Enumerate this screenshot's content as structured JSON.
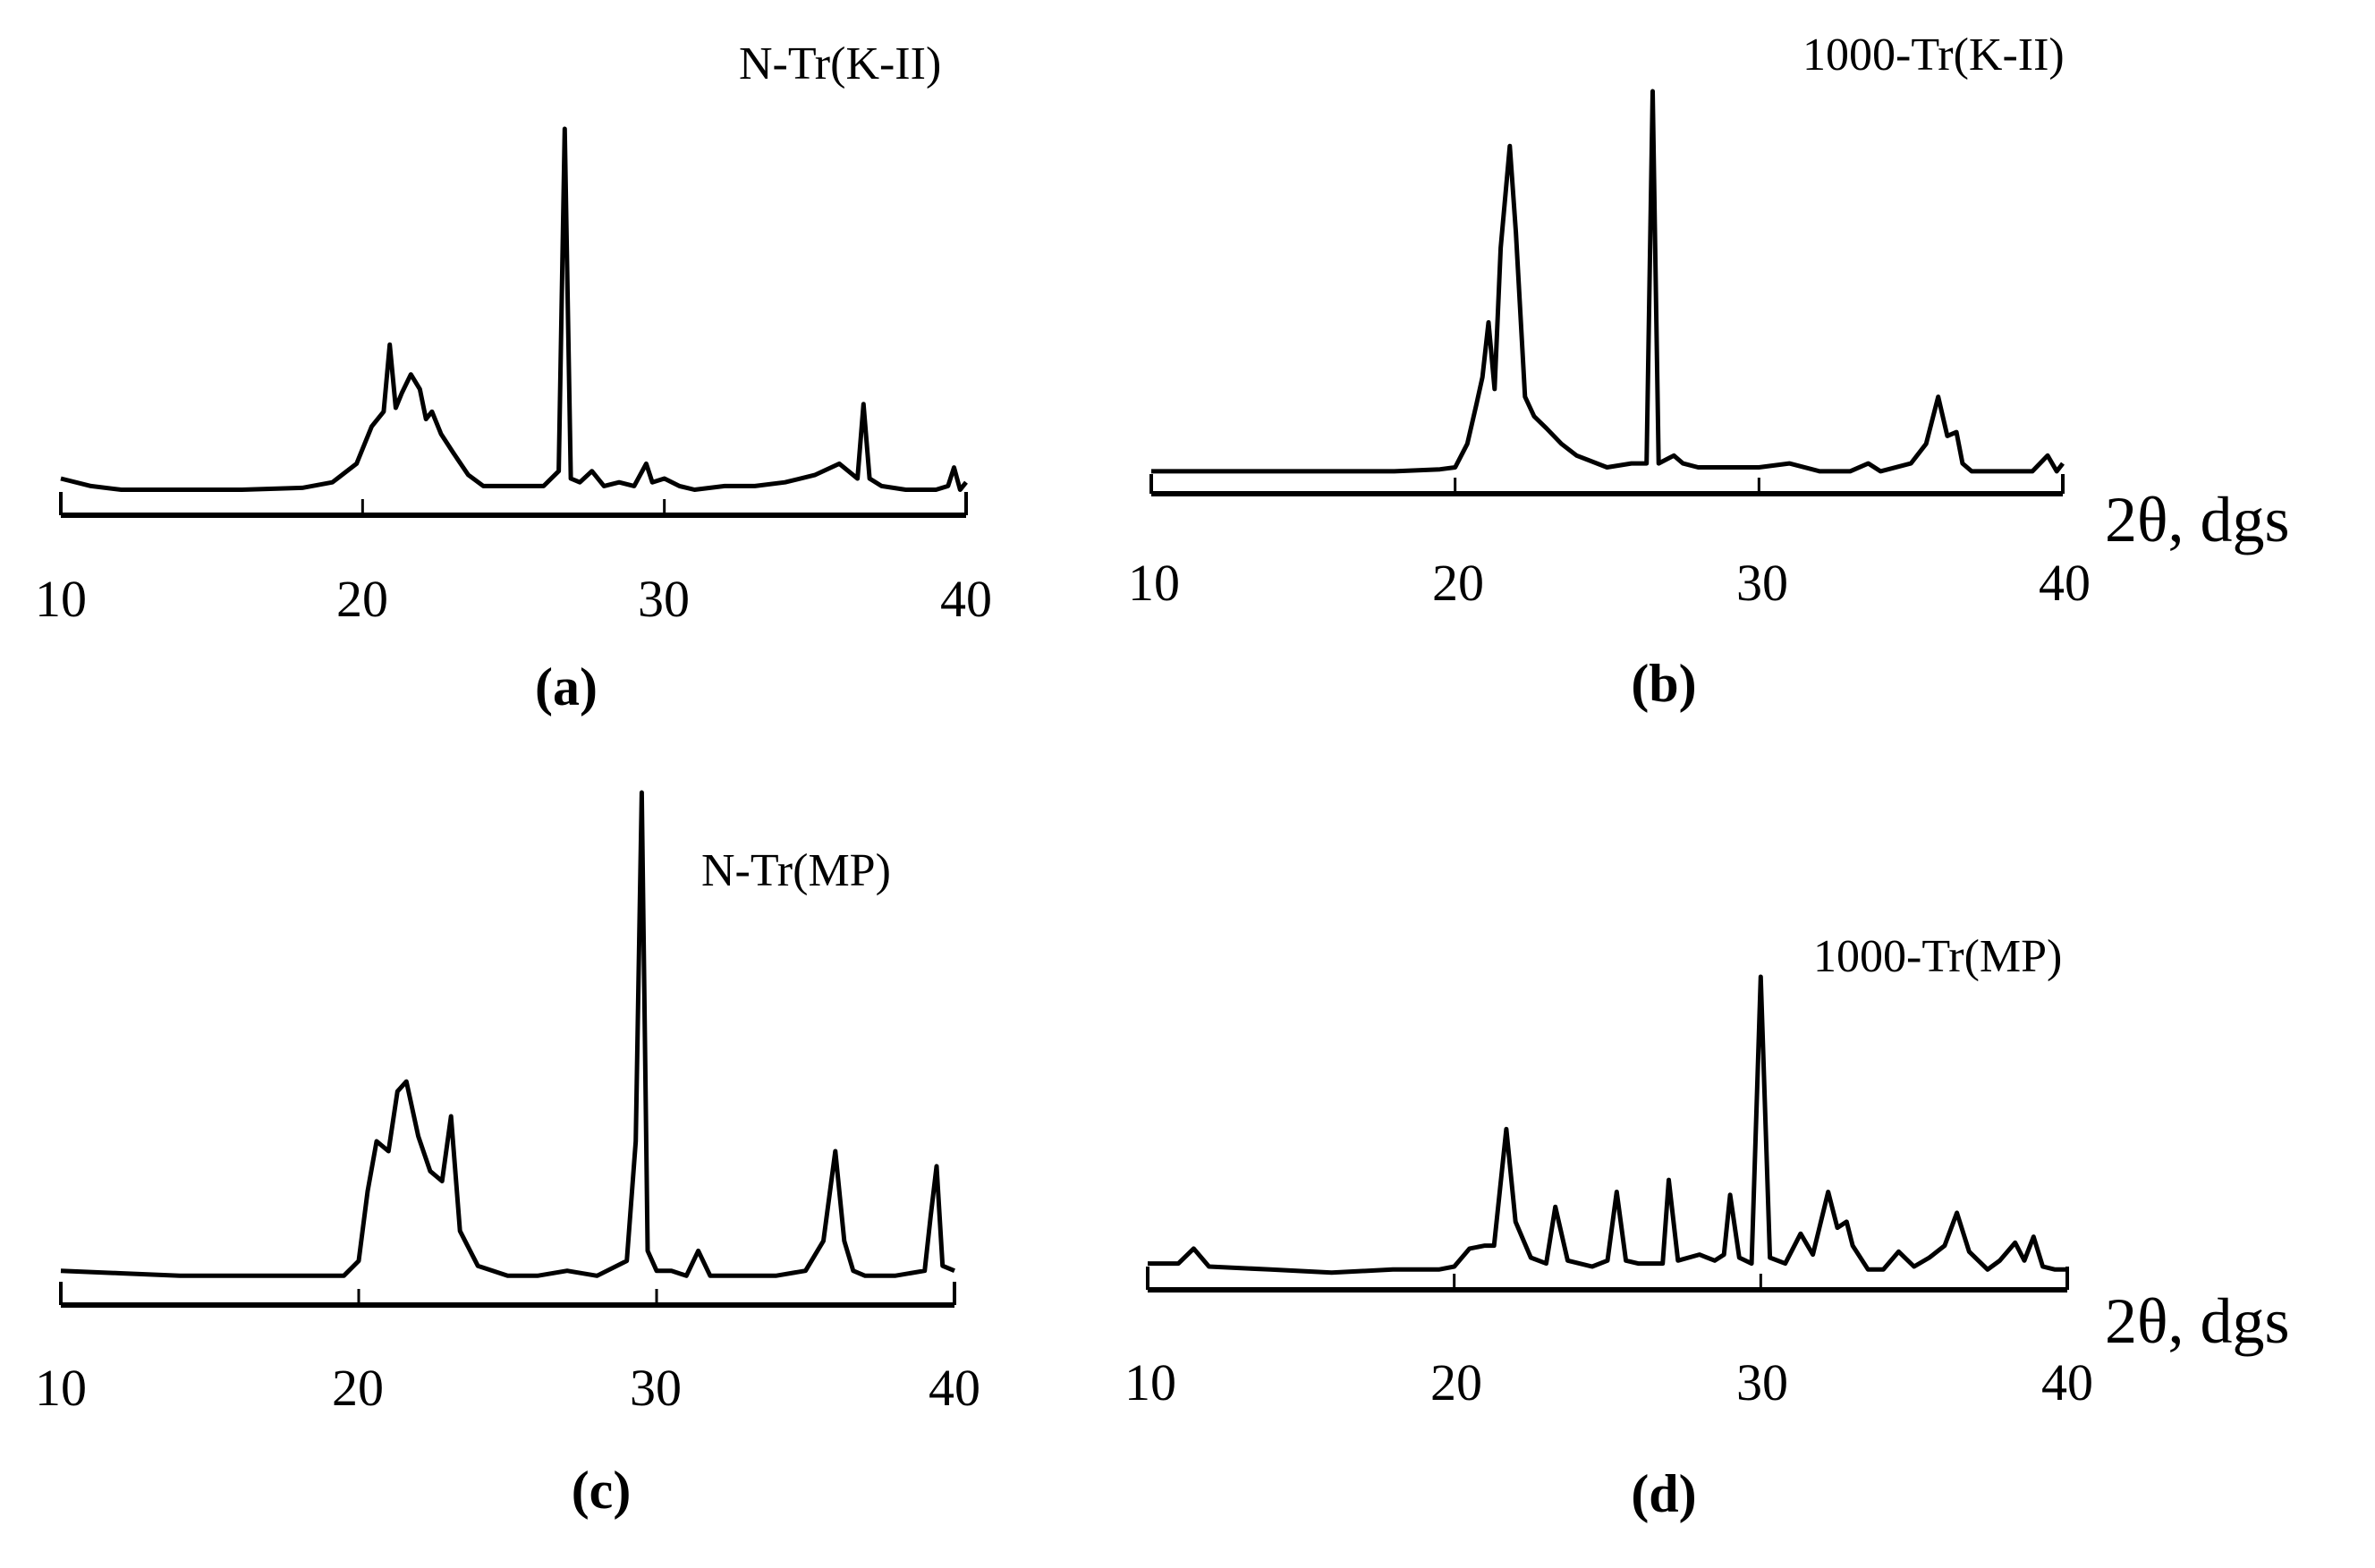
{
  "figure": {
    "panels": [
      {
        "id": "a",
        "caption": "(a)",
        "title": "N-Tr(K-II)",
        "xlabel": "",
        "ticks": [
          "10",
          "20",
          "30",
          "40"
        ]
      },
      {
        "id": "b",
        "caption": "(b)",
        "title": "1000-Tr(K-II)",
        "xlabel": "2θ, dgs",
        "ticks": [
          "10",
          "20",
          "30",
          "40"
        ]
      },
      {
        "id": "c",
        "caption": "(c)",
        "title": "N-Tr(MP)",
        "xlabel": "",
        "ticks": [
          "10",
          "20",
          "30",
          "40"
        ]
      },
      {
        "id": "d",
        "caption": "(d)",
        "title": "1000-Tr(MP)",
        "xlabel": "2θ, dgs",
        "ticks": [
          "10",
          "20",
          "30",
          "40"
        ]
      }
    ],
    "line_color": "#000000",
    "background": "#ffffff"
  },
  "chart_data": [
    {
      "type": "line",
      "panel": "a",
      "title": "N-Tr(K-II)",
      "xlabel": "2θ, dgs",
      "ylabel": "",
      "xlim": [
        10,
        40
      ],
      "xticks": [
        10,
        20,
        30,
        40
      ],
      "grid": false,
      "series": [
        {
          "name": "N-Tr(K-II)",
          "x": [
            10,
            11,
            12,
            14,
            16,
            18,
            19,
            19.8,
            20.3,
            20.7,
            20.9,
            21.1,
            21.3,
            21.6,
            21.9,
            22.1,
            22.3,
            22.6,
            23,
            23.5,
            24,
            25,
            26,
            26.5,
            26.7,
            26.9,
            27.2,
            27.6,
            28,
            28.5,
            29,
            29.4,
            29.6,
            30,
            30.5,
            31,
            32,
            33,
            34,
            35,
            35.8,
            36.1,
            36.4,
            36.6,
            36.8,
            37.2,
            38,
            39,
            39.4,
            39.6,
            39.8,
            40
          ],
          "y": [
            6,
            4,
            3,
            3,
            3,
            3.5,
            5,
            10,
            20,
            24,
            42,
            25,
            29,
            34,
            30,
            22,
            24,
            18,
            13,
            7,
            4,
            4,
            4,
            8,
            100,
            6,
            5,
            8,
            4,
            5,
            4,
            10,
            5,
            6,
            4,
            3,
            4,
            4,
            5,
            7,
            10,
            8,
            6,
            26,
            6,
            4,
            3,
            3,
            4,
            9,
            3,
            5
          ]
        }
      ]
    },
    {
      "type": "line",
      "panel": "b",
      "title": "1000-Tr(K-II)",
      "xlabel": "2θ, dgs",
      "ylabel": "",
      "xlim": [
        10,
        40
      ],
      "xticks": [
        10,
        20,
        30,
        40
      ],
      "grid": false,
      "series": [
        {
          "name": "1000-Tr(K-II)",
          "x": [
            10,
            12,
            14,
            16,
            18,
            19.5,
            20,
            20.4,
            20.7,
            20.9,
            21.1,
            21.3,
            21.5,
            21.8,
            22,
            22.3,
            22.6,
            23,
            23.5,
            24,
            25,
            25.8,
            26.3,
            26.5,
            26.7,
            27.2,
            27.5,
            28,
            29,
            30,
            31,
            32,
            33,
            33.6,
            34,
            35,
            35.5,
            35.9,
            36.2,
            36.5,
            36.7,
            37,
            38,
            39,
            39.5,
            39.8,
            40
          ],
          "y": [
            3,
            3,
            3,
            3,
            3,
            3.5,
            4,
            10,
            20,
            27,
            41,
            24,
            60,
            86,
            64,
            22,
            17,
            14,
            10,
            7,
            4,
            5,
            5,
            100,
            5,
            7,
            5,
            4,
            4,
            4,
            5,
            3,
            3,
            5,
            3,
            5,
            10,
            22,
            12,
            13,
            5,
            3,
            3,
            3,
            7,
            3,
            5
          ]
        }
      ]
    },
    {
      "type": "line",
      "panel": "c",
      "title": "N-Tr(MP)",
      "xlabel": "2θ, dgs",
      "ylabel": "",
      "xlim": [
        10,
        40
      ],
      "xticks": [
        10,
        20,
        30,
        40
      ],
      "grid": false,
      "series": [
        {
          "name": "N-Tr(MP)",
          "x": [
            10,
            12,
            14,
            16,
            18,
            19.5,
            20,
            20.3,
            20.6,
            21,
            21.3,
            21.6,
            22,
            22.4,
            22.8,
            23.1,
            23.4,
            24,
            25,
            26,
            27,
            28,
            29,
            29.3,
            29.5,
            29.7,
            30,
            30.5,
            31,
            31.4,
            31.8,
            32,
            33,
            34,
            35,
            35.6,
            36,
            36.3,
            36.6,
            37,
            38,
            39,
            39.2,
            39.4,
            39.6,
            40
          ],
          "y": [
            4,
            3.5,
            3,
            3,
            3,
            3,
            6,
            20,
            30,
            28,
            40,
            42,
            31,
            24,
            22,
            35,
            12,
            5,
            3,
            3,
            4,
            3,
            6,
            30,
            100,
            8,
            4,
            4,
            3,
            8,
            3,
            3,
            3,
            3,
            4,
            10,
            28,
            10,
            4,
            3,
            3,
            4,
            15,
            25,
            5,
            4
          ]
        }
      ]
    },
    {
      "type": "line",
      "panel": "d",
      "title": "1000-Tr(MP)",
      "xlabel": "2θ, dgs",
      "ylabel": "",
      "xlim": [
        10,
        40
      ],
      "xticks": [
        10,
        20,
        30,
        40
      ],
      "grid": false,
      "series": [
        {
          "name": "1000-Tr(MP)",
          "x": [
            10,
            11,
            11.5,
            12,
            14,
            16,
            18,
            19.5,
            20,
            20.5,
            21,
            21.3,
            21.7,
            22,
            22.5,
            23,
            23.3,
            23.7,
            24.5,
            25,
            25.3,
            25.6,
            26,
            26.8,
            27,
            27.3,
            28,
            28.5,
            28.8,
            29,
            29.3,
            29.7,
            30,
            30.3,
            30.8,
            31.3,
            31.7,
            32.2,
            32.5,
            32.8,
            33,
            33.5,
            34,
            34.5,
            35,
            35.5,
            36,
            36.4,
            36.8,
            37.4,
            37.8,
            38.3,
            38.6,
            38.9,
            39.2,
            39.6,
            40
          ],
          "y": [
            4,
            4,
            9,
            3,
            2,
            1,
            2,
            2,
            3,
            9,
            10,
            10,
            49,
            18,
            6,
            4,
            23,
            5,
            3,
            5,
            28,
            5,
            4,
            4,
            32,
            5,
            7,
            5,
            7,
            27,
            6,
            4,
            100,
            6,
            4,
            14,
            7,
            28,
            16,
            18,
            10,
            2,
            2,
            8,
            3,
            6,
            10,
            21,
            8,
            2,
            5,
            11,
            5,
            13,
            3,
            2,
            2
          ]
        }
      ]
    }
  ]
}
